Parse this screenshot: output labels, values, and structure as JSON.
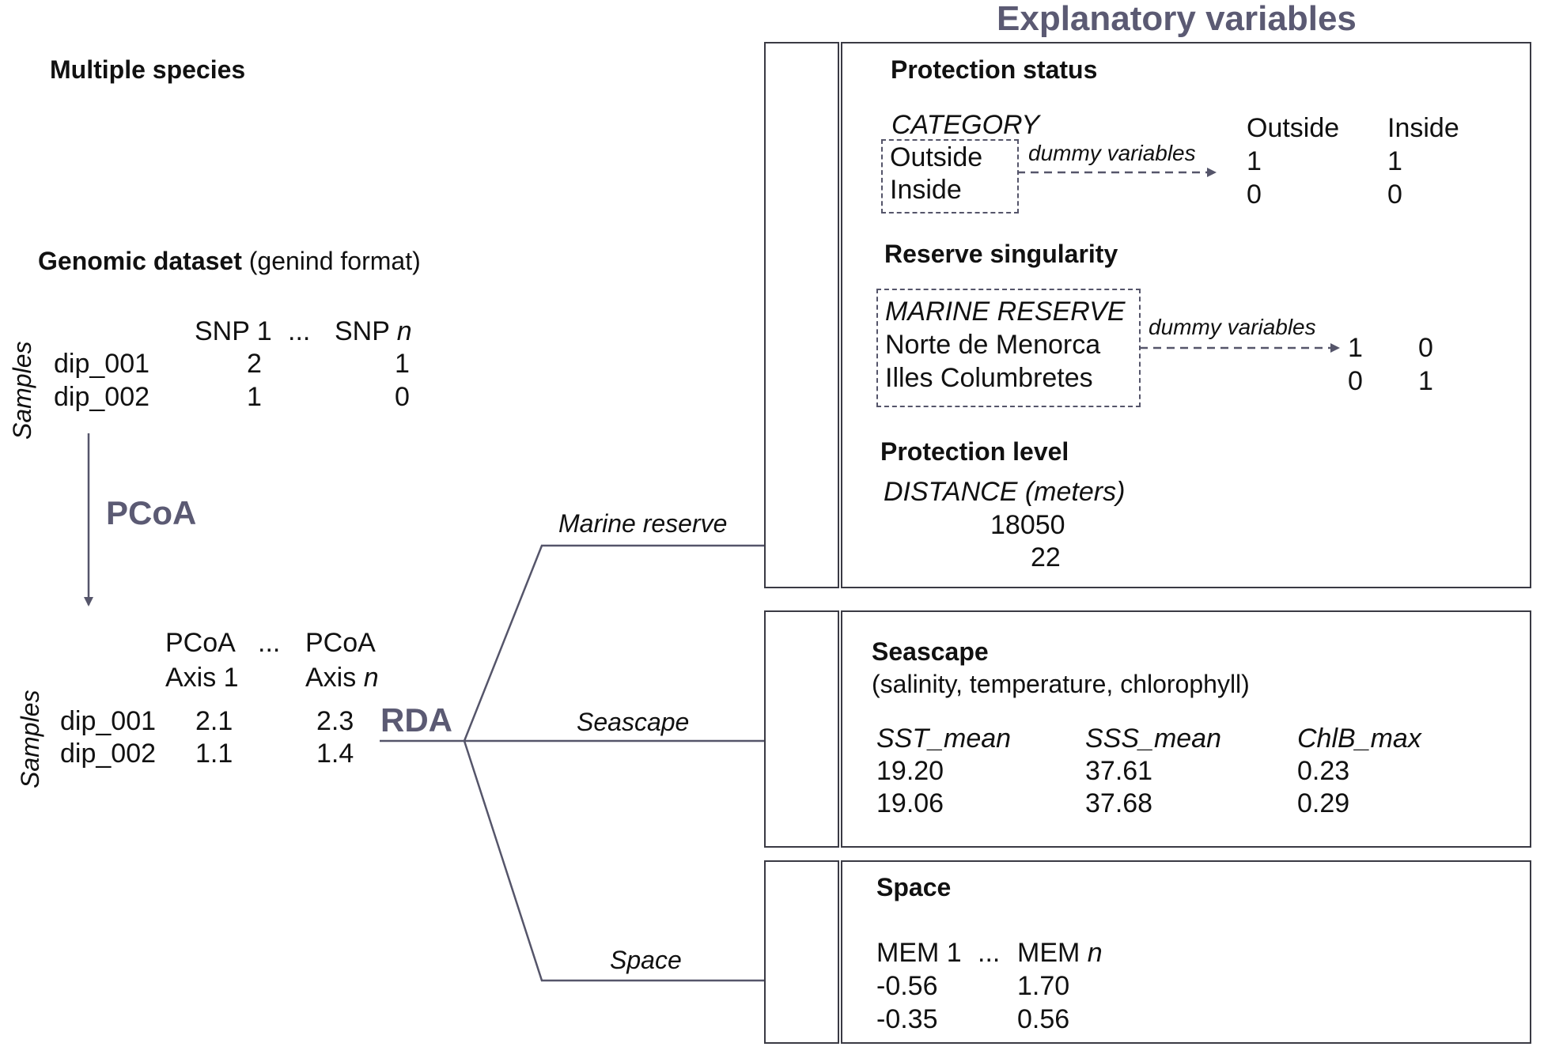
{
  "header": {
    "title": "Explanatory variables"
  },
  "left": {
    "multiple_species": "Multiple species",
    "genomic": {
      "title": "Genomic dataset",
      "subtitle": "(genind format)",
      "samples_label": "Samples",
      "col1": "SNP 1",
      "ellipsis": "...",
      "coln_prefix": "SNP ",
      "coln_italic": "n",
      "rows": [
        {
          "id": "dip_001",
          "v1": "2",
          "vn": "1"
        },
        {
          "id": "dip_002",
          "v1": "1",
          "vn": "0"
        }
      ]
    },
    "pcoa_label": "PCoA",
    "pcoa_table": {
      "samples_label": "Samples",
      "col1_line1": "PCoA",
      "col1_line2": "Axis 1",
      "ellipsis": "...",
      "coln_line1": "PCoA",
      "coln_line2_prefix": "Axis ",
      "coln_line2_italic": "n",
      "rows": [
        {
          "id": "dip_001",
          "v1": "2.1",
          "vn": "2.3"
        },
        {
          "id": "dip_002",
          "v1": "1.1",
          "vn": "1.4"
        }
      ]
    },
    "rda_label": "RDA"
  },
  "branches": {
    "marine_reserve": "Marine reserve",
    "seascape": "Seascape",
    "space": "Space"
  },
  "protection_status": {
    "title": "Protection status",
    "category_header": "CATEGORY",
    "categories": [
      "Outside",
      "Inside"
    ],
    "arrow_label": "dummy variables",
    "dummy_headers": [
      "Outside",
      "Inside"
    ],
    "dummy_rows": [
      [
        "1",
        "1"
      ],
      [
        "0",
        "0"
      ]
    ]
  },
  "reserve_singularity": {
    "title": "Reserve singularity",
    "header": "MARINE RESERVE",
    "reserves": [
      "Norte de Menorca",
      "Illes Columbretes"
    ],
    "arrow_label": "dummy variables",
    "dummy_rows": [
      [
        "1",
        "0"
      ],
      [
        "0",
        "1"
      ]
    ]
  },
  "protection_level": {
    "title": "Protection level",
    "header": "DISTANCE (meters)",
    "values": [
      "18050",
      "22"
    ]
  },
  "seascape": {
    "title": "Seascape",
    "subtitle": "(salinity, temperature, chlorophyll)",
    "headers": [
      "SST_mean",
      "SSS_mean",
      "ChlB_max"
    ],
    "rows": [
      [
        "19.20",
        "37.61",
        "0.23"
      ],
      [
        "19.06",
        "37.68",
        "0.29"
      ]
    ]
  },
  "space": {
    "title": "Space",
    "col1": "MEM 1",
    "ellipsis": "...",
    "coln_prefix": "MEM ",
    "coln_italic": "n",
    "rows": [
      [
        "-0.56",
        "1.70"
      ],
      [
        "-0.35",
        "0.56"
      ]
    ]
  },
  "colors": {
    "accent": "#5b5a73",
    "line": "#55556a",
    "text": "#111111"
  }
}
